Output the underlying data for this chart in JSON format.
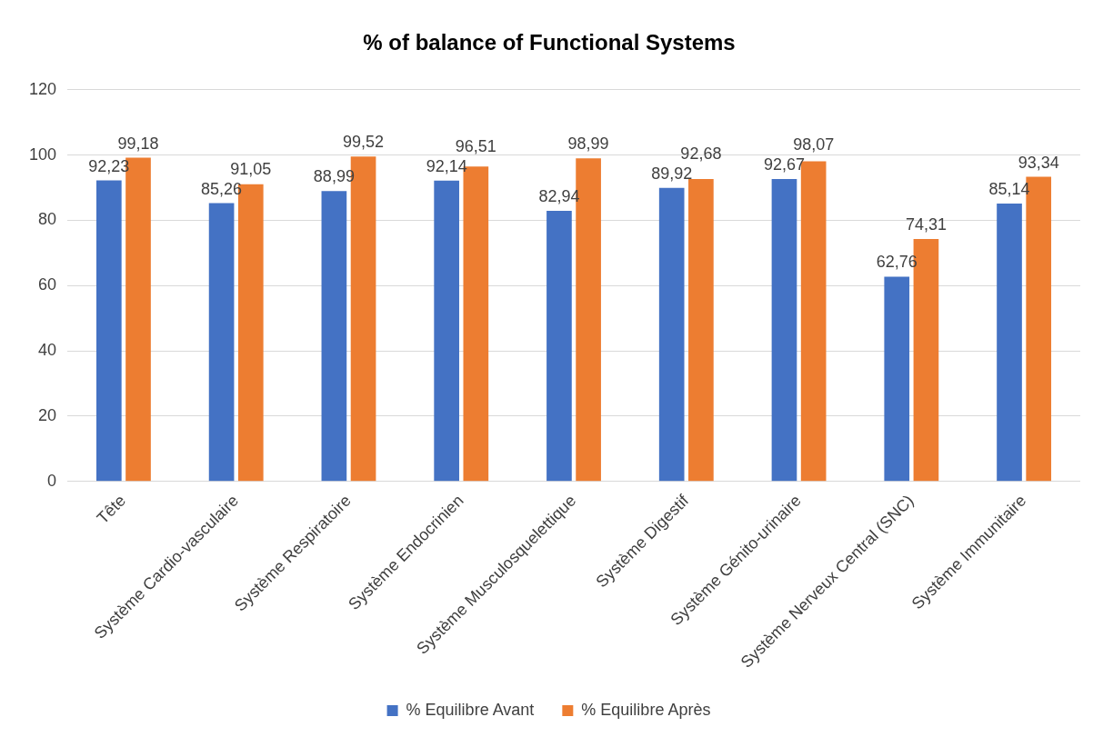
{
  "chart_data": {
    "type": "bar",
    "title": "% of balance of Functional Systems",
    "categories": [
      "Tête",
      "Système Cardio-vasculaire",
      "Système Respiratoire",
      "Système Endocrinien",
      "Système Musculosquelettique",
      "Système Digestif",
      "Système Génito-urinaire",
      "Système Nerveux Central (SNC)",
      "Système Immunitaire"
    ],
    "series": [
      {
        "name": "% Equilibre Avant",
        "color": "#4472c4",
        "values": [
          92.23,
          85.26,
          88.99,
          92.14,
          82.94,
          89.92,
          92.67,
          62.76,
          85.14
        ],
        "value_labels": [
          "92,23",
          "85,26",
          "88,99",
          "92,14",
          "82,94",
          "89,92",
          "92,67",
          "62,76",
          "85,14"
        ]
      },
      {
        "name": "% Equilibre Après",
        "color": "#ed7d31",
        "values": [
          99.18,
          91.05,
          99.52,
          96.51,
          98.99,
          92.68,
          98.07,
          74.31,
          93.34
        ],
        "value_labels": [
          "99,18",
          "91,05",
          "99,52",
          "96,51",
          "98,99",
          "92,68",
          "98,07",
          "74,31",
          "93,34"
        ]
      }
    ],
    "ylim": [
      0,
      120
    ],
    "yticks": [
      0,
      20,
      40,
      60,
      80,
      100,
      120
    ],
    "grid": "y",
    "legend": "bottom"
  }
}
